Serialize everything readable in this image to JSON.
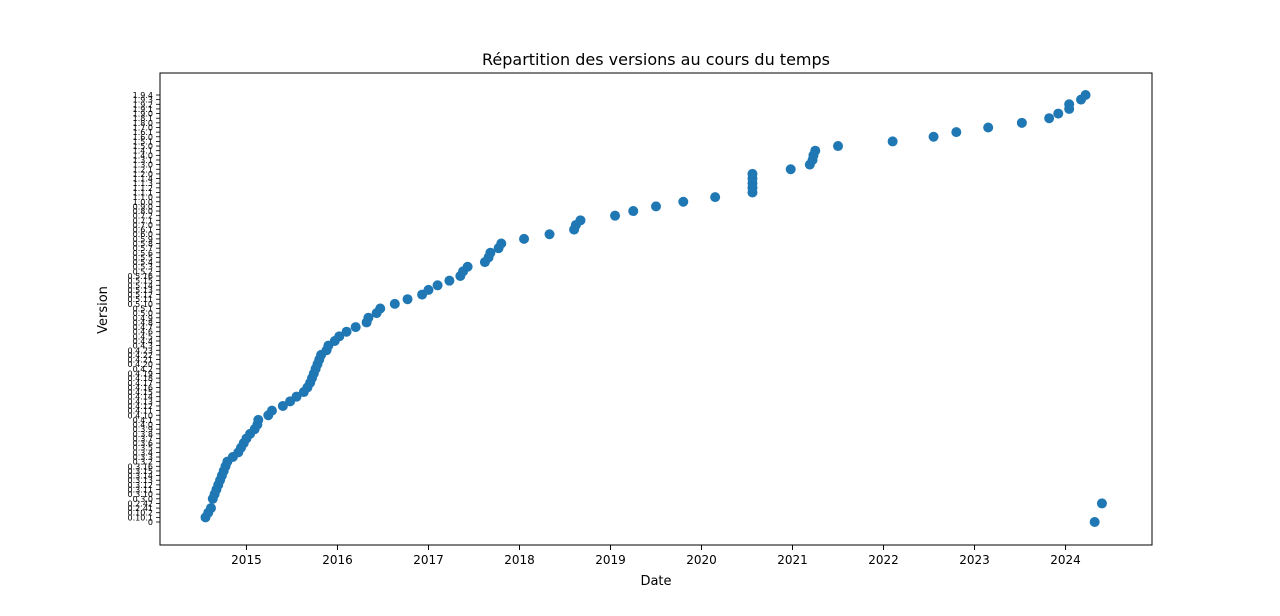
{
  "chart_data": {
    "type": "scatter",
    "title": "Répartition des versions au cours du temps",
    "xlabel": "Date",
    "ylabel": "Version",
    "xlim": [
      2014.05,
      2024.95
    ],
    "x_ticks": [
      2015,
      2016,
      2017,
      2018,
      2019,
      2020,
      2021,
      2022,
      2023,
      2024
    ],
    "x_tick_labels": [
      "2015",
      "2016",
      "2017",
      "2018",
      "2019",
      "2020",
      "2021",
      "2022",
      "2023",
      "2024"
    ],
    "grid": false,
    "legend": false,
    "color": "#1f77b4",
    "y_categories": [
      "0",
      "0.10.1",
      "0.10.2",
      "0.2.41",
      "0.2.42",
      "0.3.0",
      "0.3.10",
      "0.3.11",
      "0.3.12",
      "0.3.13",
      "0.3.14",
      "0.3.15",
      "0.3.16",
      "0.3.2",
      "0.3.3",
      "0.3.4",
      "0.3.5",
      "0.3.6",
      "0.3.7",
      "0.3.8",
      "0.3.9",
      "0.4.0",
      "0.4.1",
      "0.4.10",
      "0.4.11",
      "0.4.12",
      "0.4.13",
      "0.4.14",
      "0.4.15",
      "0.4.16",
      "0.4.17",
      "0.4.18",
      "0.4.19",
      "0.4.2",
      "0.4.20",
      "0.4.21",
      "0.4.22",
      "0.4.23",
      "0.4.3",
      "0.4.4",
      "0.4.5",
      "0.4.6",
      "0.4.7",
      "0.4.8",
      "0.4.9",
      "0.5.0",
      "0.5.1",
      "0.5.10",
      "0.5.11",
      "0.5.12",
      "0.5.13",
      "0.5.14",
      "0.5.15",
      "0.5.16",
      "0.5.2",
      "0.5.3",
      "0.5.4",
      "0.5.5",
      "0.5.6",
      "0.5.7",
      "0.5.8",
      "0.5.9",
      "0.6.0",
      "0.6.1",
      "0.7.0",
      "0.7.1",
      "0.7.2",
      "0.8.0",
      "0.9.0",
      "1.0.0",
      "1.1.0",
      "1.1.1",
      "1.1.2",
      "1.1.3",
      "1.1.4",
      "1.2.0",
      "1.2.1",
      "1.3.0",
      "1.3.1",
      "1.4.0",
      "1.4.1",
      "1.5.0",
      "1.5.1",
      "1.6.0",
      "1.6.1",
      "1.7.0",
      "1.8.0",
      "1.8.1",
      "1.9.0",
      "1.9.1",
      "1.9.2",
      "1.9.3",
      "1.9.4"
    ],
    "x": [
      2014.55,
      2014.58,
      2014.61,
      2014.63,
      2014.65,
      2014.67,
      2014.69,
      2014.71,
      2014.73,
      2014.75,
      2014.77,
      2014.79,
      2014.85,
      2014.91,
      2014.94,
      2014.97,
      2015.0,
      2015.04,
      2015.09,
      2015.12,
      2015.13,
      2015.24,
      2015.28,
      2015.4,
      2015.48,
      2015.55,
      2015.63,
      2015.67,
      2015.7,
      2015.72,
      2015.74,
      2015.76,
      2015.78,
      2015.8,
      2015.82,
      2015.88,
      2015.9,
      2015.97,
      2016.02,
      2016.1,
      2016.2,
      2016.32,
      2016.34,
      2016.43,
      2016.47,
      2016.63,
      2016.77,
      2016.93,
      2017.0,
      2017.1,
      2017.23,
      2017.35,
      2017.38,
      2017.43,
      2017.62,
      2017.66,
      2017.68,
      2017.77,
      2017.8,
      2018.05,
      2018.33,
      2018.6,
      2018.62,
      2018.67,
      2019.05,
      2019.25,
      2019.5,
      2019.8,
      2020.15,
      2020.56,
      2020.56,
      2020.56,
      2020.56,
      2020.56,
      2020.98,
      2021.19,
      2021.22,
      2021.23,
      2021.25,
      2021.5,
      2022.1,
      2022.55,
      2022.8,
      2023.15,
      2023.52,
      2023.82,
      2023.92,
      2024.04,
      2024.04,
      2024.17,
      2024.22,
      2024.32,
      2024.4
    ],
    "y": [
      "0.10.1",
      "0.10.2",
      "0.2.41",
      "0.3.0",
      "0.3.10",
      "0.3.11",
      "0.3.12",
      "0.3.13",
      "0.3.14",
      "0.3.15",
      "0.3.16",
      "0.3.2",
      "0.3.3",
      "0.3.4",
      "0.3.5",
      "0.3.6",
      "0.3.7",
      "0.3.8",
      "0.3.9",
      "0.4.0",
      "0.4.1",
      "0.4.10",
      "0.4.11",
      "0.4.12",
      "0.4.13",
      "0.4.14",
      "0.4.15",
      "0.4.16",
      "0.4.17",
      "0.4.18",
      "0.4.19",
      "0.4.2",
      "0.4.20",
      "0.4.21",
      "0.4.22",
      "0.4.23",
      "0.4.3",
      "0.4.4",
      "0.4.5",
      "0.4.6",
      "0.4.7",
      "0.4.8",
      "0.4.9",
      "0.5.0",
      "0.5.1",
      "0.5.10",
      "0.5.11",
      "0.5.12",
      "0.5.13",
      "0.5.14",
      "0.5.15",
      "0.5.16",
      "0.5.2",
      "0.5.3",
      "0.5.4",
      "0.5.5",
      "0.5.6",
      "0.5.7",
      "0.5.8",
      "0.5.9",
      "0.6.0",
      "0.6.1",
      "0.7.0",
      "0.7.1",
      "0.7.2",
      "0.8.0",
      "0.9.0",
      "1.0.0",
      "1.1.0",
      "1.1.1",
      "1.1.2",
      "1.1.3",
      "1.1.4",
      "1.2.0",
      "1.2.1",
      "1.3.0",
      "1.3.1",
      "1.4.0",
      "1.4.1",
      "1.5.0",
      "1.5.1",
      "1.6.0",
      "1.6.1",
      "1.7.0",
      "1.8.0",
      "1.8.1",
      "1.9.0",
      "1.9.1",
      "1.9.2",
      "1.9.3",
      "1.9.4",
      "0",
      "0.2.42"
    ],
    "x_extra_note": "",
    "annotations": []
  }
}
